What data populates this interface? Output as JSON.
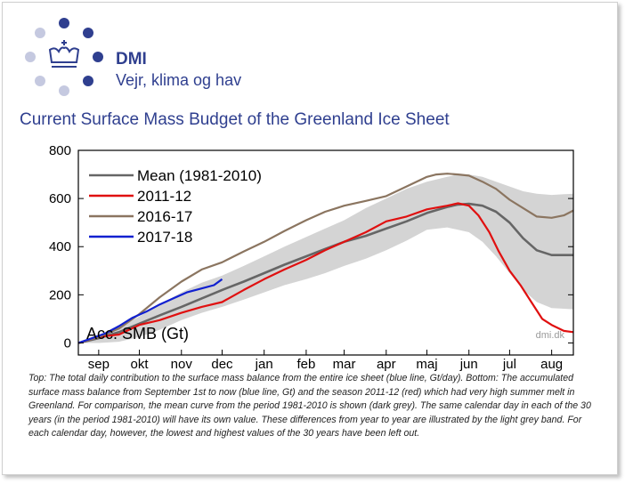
{
  "brand": {
    "name": "DMI",
    "tagline": "Vejr, klima og hav"
  },
  "title": "Current Surface Mass Budget of the Greenland Ice Sheet",
  "caption": "Top: The total daily contribution to the surface mass balance from the entire ice sheet (blue line, Gt/day). Bottom: The accumulated surface mass balance from September 1st to now (blue line, Gt) and the season 2011-12 (red) which had very high summer melt in Greenland. For comparison, the mean curve from the period 1981-2010 is shown (dark grey). The same calendar day in each of the 30 years (in the period 1981-2010) will have its own value. These differences from year to year are illustrated by the light grey band. For each calendar day, however, the lowest and highest values of the 30 years have been left out.",
  "colors": {
    "brand": "#2f3f8f",
    "logo_dark": "#2f3f8f",
    "logo_light": "#c5c9e0",
    "band": "#d4d4d4"
  },
  "chart_data": {
    "type": "line",
    "ylabel": "Acc. SMB (Gt)",
    "watermark": "dmi.dk",
    "ylim": [
      -50,
      800
    ],
    "yticks": [
      0,
      200,
      400,
      600,
      800
    ],
    "xlim": [
      0,
      365
    ],
    "xticks": [
      {
        "label": "sep",
        "x": 15
      },
      {
        "label": "okt",
        "x": 45
      },
      {
        "label": "nov",
        "x": 76
      },
      {
        "label": "dec",
        "x": 106
      },
      {
        "label": "jan",
        "x": 137
      },
      {
        "label": "feb",
        "x": 168
      },
      {
        "label": "mar",
        "x": 196
      },
      {
        "label": "apr",
        "x": 227
      },
      {
        "label": "maj",
        "x": 257
      },
      {
        "label": "jun",
        "x": 288
      },
      {
        "label": "jul",
        "x": 318
      },
      {
        "label": "aug",
        "x": 349
      }
    ],
    "band": {
      "name": "",
      "x": [
        0,
        15,
        30,
        45,
        60,
        76,
        91,
        106,
        122,
        137,
        152,
        168,
        182,
        196,
        212,
        227,
        242,
        257,
        272,
        280,
        288,
        298,
        308,
        318,
        328,
        338,
        349,
        365
      ],
      "upper": [
        0,
        30,
        65,
        110,
        160,
        210,
        250,
        280,
        320,
        360,
        400,
        440,
        475,
        510,
        560,
        600,
        640,
        670,
        690,
        700,
        700,
        690,
        670,
        650,
        630,
        620,
        615,
        620
      ],
      "lower": [
        0,
        0,
        5,
        25,
        55,
        95,
        125,
        150,
        180,
        210,
        240,
        265,
        290,
        320,
        350,
        385,
        425,
        470,
        480,
        470,
        460,
        420,
        360,
        290,
        220,
        170,
        145,
        140
      ]
    },
    "series": [
      {
        "name": "Mean (1981-2010)",
        "color": "#666666",
        "x": [
          0,
          15,
          30,
          45,
          60,
          76,
          91,
          106,
          122,
          137,
          152,
          168,
          182,
          196,
          212,
          227,
          242,
          257,
          272,
          280,
          288,
          298,
          308,
          318,
          328,
          338,
          349,
          365
        ],
        "values": [
          0,
          20,
          45,
          80,
          115,
          150,
          185,
          220,
          255,
          290,
          325,
          360,
          390,
          420,
          445,
          475,
          505,
          540,
          565,
          575,
          578,
          570,
          545,
          500,
          435,
          385,
          365,
          365
        ]
      },
      {
        "name": "2011-12",
        "color": "#e01010",
        "x": [
          0,
          15,
          30,
          45,
          60,
          76,
          91,
          106,
          122,
          137,
          152,
          168,
          182,
          196,
          212,
          227,
          242,
          257,
          272,
          280,
          288,
          295,
          303,
          310,
          318,
          326,
          334,
          342,
          349,
          358,
          365
        ],
        "values": [
          0,
          25,
          35,
          75,
          95,
          125,
          150,
          170,
          220,
          265,
          305,
          345,
          385,
          420,
          460,
          505,
          525,
          555,
          570,
          580,
          570,
          530,
          460,
          380,
          300,
          240,
          170,
          100,
          75,
          50,
          45
        ]
      },
      {
        "name": "2016-17",
        "color": "#8b7560",
        "x": [
          0,
          15,
          30,
          45,
          60,
          76,
          91,
          106,
          122,
          137,
          152,
          168,
          182,
          196,
          212,
          227,
          242,
          257,
          264,
          272,
          280,
          288,
          298,
          308,
          318,
          328,
          338,
          349,
          358,
          365
        ],
        "values": [
          0,
          25,
          60,
          120,
          190,
          255,
          305,
          335,
          380,
          420,
          465,
          510,
          545,
          570,
          590,
          610,
          650,
          690,
          700,
          703,
          700,
          695,
          670,
          640,
          595,
          560,
          525,
          520,
          530,
          550
        ]
      },
      {
        "name": "2017-18",
        "color": "#1020d0",
        "x": [
          0,
          10,
          20,
          30,
          40,
          50,
          60,
          70,
          80,
          90,
          100,
          106
        ],
        "values": [
          0,
          20,
          40,
          70,
          105,
          130,
          160,
          185,
          210,
          225,
          240,
          265
        ]
      }
    ]
  }
}
